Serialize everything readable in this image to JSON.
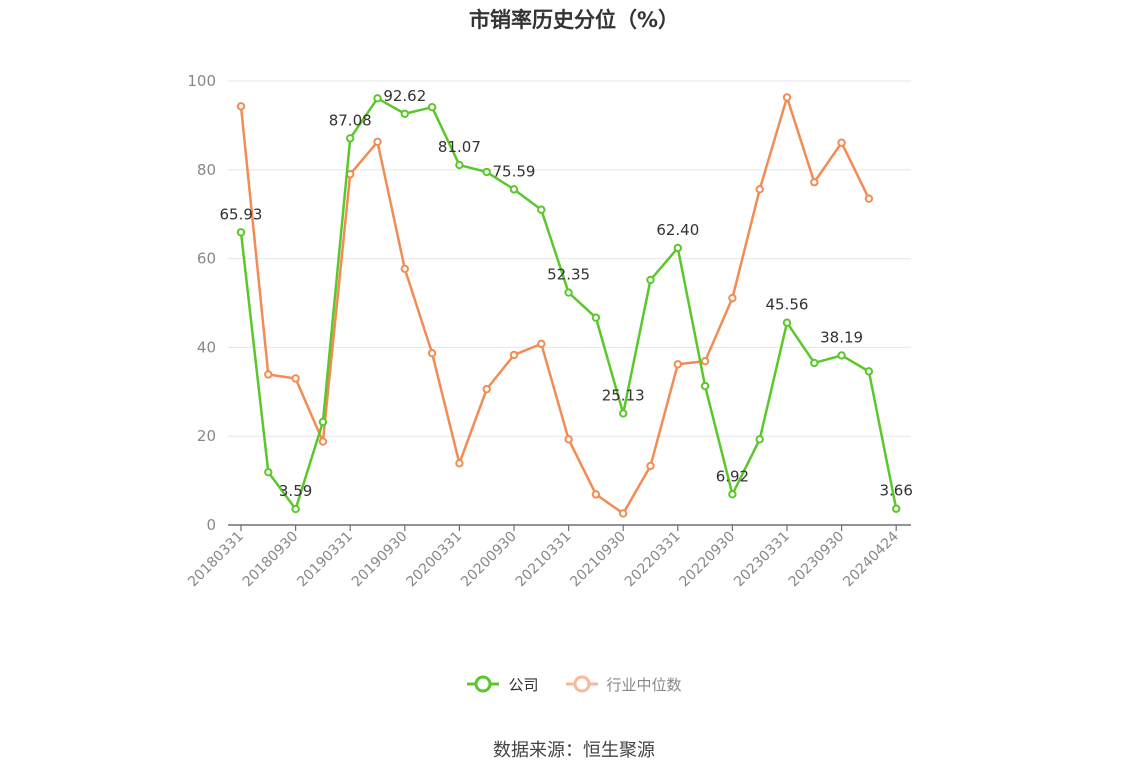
{
  "title": "市销率历史分位（%）",
  "source": "数据来源：恒生聚源",
  "chart_data": {
    "type": "line",
    "title": "市销率历史分位（%）",
    "ylim": [
      0,
      100
    ],
    "yticks": [
      0,
      20,
      40,
      60,
      80,
      100
    ],
    "grid": true,
    "legend_position": "bottom",
    "x_tick_labels": [
      "20180331",
      "20180930",
      "20190331",
      "20190930",
      "20200331",
      "20200930",
      "20210331",
      "20210930",
      "20220331",
      "20220930",
      "20230331",
      "20230930",
      "20240424"
    ],
    "x": [
      "20180331",
      "20180630",
      "20180930",
      "20181231",
      "20190331",
      "20190630",
      "20190930",
      "20191231",
      "20200331",
      "20200630",
      "20200930",
      "20201231",
      "20210331",
      "20210630",
      "20210930",
      "20211231",
      "20220331",
      "20220630",
      "20220930",
      "20221231",
      "20230331",
      "20230630",
      "20230930",
      "20231231",
      "20240424"
    ],
    "series": [
      {
        "name": "公司",
        "color": "#5ac82a",
        "values": [
          65.93,
          11.9,
          3.59,
          23.2,
          87.08,
          96.1,
          92.62,
          94.1,
          81.07,
          79.5,
          75.59,
          71.0,
          52.35,
          46.7,
          25.13,
          55.2,
          62.4,
          31.3,
          6.92,
          19.3,
          45.56,
          36.5,
          38.19,
          34.6,
          3.66
        ],
        "labels": {
          "0": "65.93",
          "2": "3.59",
          "4": "87.08",
          "6": "92.62",
          "8": "81.07",
          "10": "75.59",
          "12": "52.35",
          "14": "25.13",
          "16": "62.40",
          "18": "6.92",
          "20": "45.56",
          "22": "38.19",
          "24": "3.66"
        }
      },
      {
        "name": "行业中位数",
        "color": "#f28c55",
        "values": [
          94.3,
          33.9,
          33.0,
          18.8,
          79.0,
          86.3,
          57.7,
          38.7,
          13.9,
          30.6,
          38.3,
          40.8,
          19.3,
          6.9,
          2.6,
          13.3,
          36.2,
          36.9,
          51.1,
          75.6,
          96.3,
          77.2,
          86.1,
          73.5,
          null
        ]
      }
    ]
  }
}
